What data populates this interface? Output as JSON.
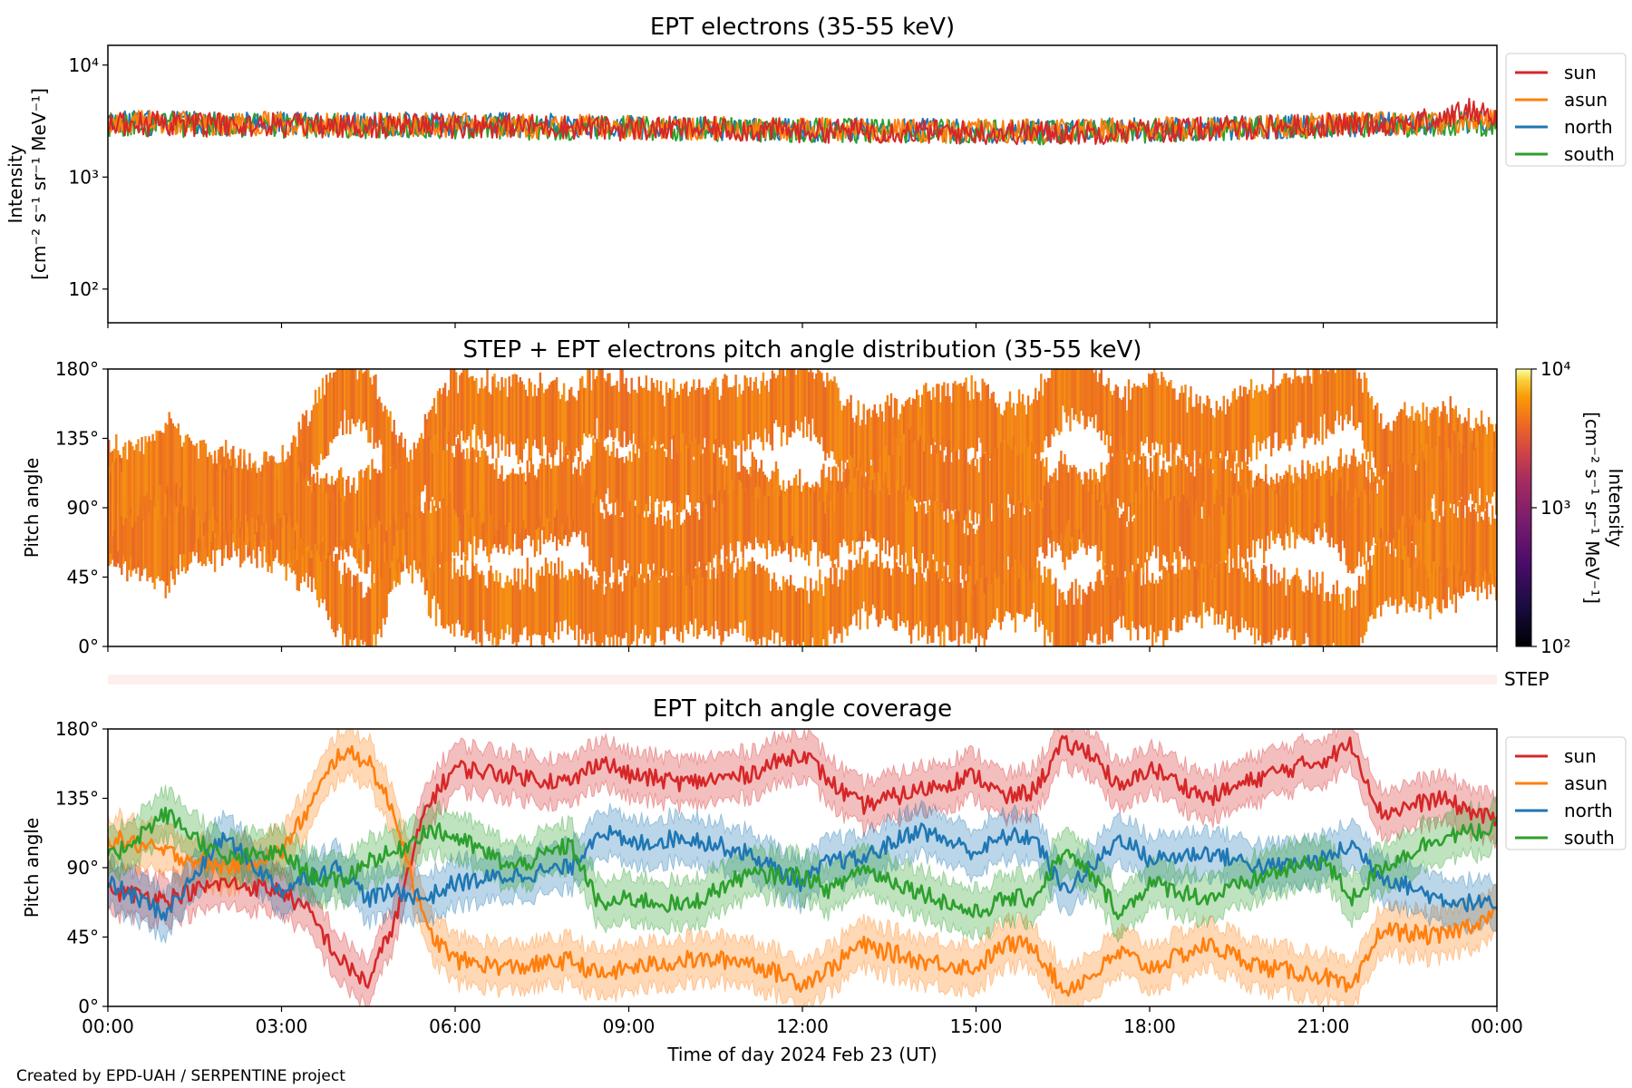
{
  "chart_data": [
    {
      "type": "line",
      "title": "EPT electrons (35-55 keV)",
      "ylabel": "Intensity",
      "yunit_label": "[cm⁻² s⁻¹ sr⁻¹ MeV⁻¹]",
      "yscale": "log",
      "ylim": [
        50,
        15000
      ],
      "yticks": [
        {
          "value": 100,
          "label": "10²"
        },
        {
          "value": 1000,
          "label": "10³"
        },
        {
          "value": 10000,
          "label": "10⁴"
        }
      ],
      "xlim_hours": [
        0,
        24
      ],
      "legend_position": "outside-right-top",
      "series": [
        {
          "name": "sun",
          "color": "#d62728",
          "x": [
            0,
            1,
            2,
            3,
            4,
            5,
            6,
            7,
            8,
            9,
            10,
            11,
            12,
            13,
            14,
            15,
            16,
            17,
            18,
            19,
            20,
            21,
            22,
            23,
            23.5,
            24
          ],
          "values": [
            3000,
            3000,
            2900,
            2900,
            2800,
            2900,
            2850,
            2900,
            2800,
            2700,
            2700,
            2650,
            2600,
            2600,
            2550,
            2500,
            2500,
            2500,
            2600,
            2700,
            2800,
            2900,
            3000,
            3200,
            4000,
            3500
          ]
        },
        {
          "name": "asun",
          "color": "#ff7f0e",
          "x": [
            0,
            2,
            4,
            6,
            8,
            10,
            12,
            14,
            16,
            18,
            20,
            22,
            24
          ],
          "values": [
            3100,
            3000,
            2950,
            2900,
            2850,
            2750,
            2650,
            2600,
            2550,
            2650,
            2800,
            3000,
            3100
          ]
        },
        {
          "name": "north",
          "color": "#1f77b4",
          "x": [
            0,
            2,
            4,
            6,
            8,
            10,
            12,
            14,
            16,
            18,
            20,
            22,
            24
          ],
          "values": [
            3050,
            3000,
            2950,
            2950,
            2850,
            2750,
            2650,
            2600,
            2550,
            2650,
            2800,
            3000,
            3100
          ]
        },
        {
          "name": "south",
          "color": "#2ca02c",
          "x": [
            0,
            2,
            4,
            6,
            8,
            10,
            12,
            14,
            16,
            18,
            20,
            22,
            24
          ],
          "values": [
            2950,
            2900,
            2850,
            2800,
            2750,
            2700,
            2600,
            2550,
            2500,
            2600,
            2750,
            2900,
            3000
          ]
        }
      ]
    },
    {
      "type": "heatmap",
      "title": "STEP + EPT electrons pitch angle distribution (35-55 keV)",
      "ylabel": "Pitch angle",
      "ylim": [
        0,
        180
      ],
      "yticks": [
        "0°",
        "45°",
        "90°",
        "135°",
        "180°"
      ],
      "xlim_hours": [
        0,
        24
      ],
      "colorbar": {
        "label": "Intensity",
        "unit_label": "[cm⁻² s⁻¹ sr⁻¹ MeV⁻¹]",
        "scale": "log",
        "range": [
          100,
          10000
        ],
        "tick_labels": [
          "10²",
          "10³",
          "10⁴"
        ],
        "colormap": "inferno"
      },
      "step_strip_label": "STEP"
    },
    {
      "type": "line",
      "title": "EPT pitch angle coverage",
      "ylabel": "Pitch angle",
      "xlabel": "Time of day 2024 Feb 23 (UT)",
      "ylim": [
        0,
        180
      ],
      "yticks": [
        "0°",
        "45°",
        "90°",
        "135°",
        "180°"
      ],
      "xlim_hours": [
        0,
        24
      ],
      "xticks": [
        "00:00",
        "03:00",
        "06:00",
        "09:00",
        "12:00",
        "15:00",
        "18:00",
        "21:00",
        "00:00"
      ],
      "legend_position": "outside-right-top",
      "shaded_band_halfwidth_deg": 15,
      "series": [
        {
          "name": "sun",
          "color": "#d62728",
          "x": [
            0,
            1,
            2,
            3,
            3.5,
            4,
            4.5,
            5,
            5.5,
            6,
            7,
            8,
            8.5,
            9,
            10,
            11,
            12,
            12.5,
            13,
            14,
            15,
            15.5,
            16,
            16.5,
            17,
            17.5,
            18,
            19,
            20,
            21,
            21.5,
            22,
            23,
            24
          ],
          "values": [
            75,
            70,
            80,
            75,
            60,
            30,
            15,
            60,
            130,
            155,
            150,
            145,
            160,
            150,
            145,
            150,
            165,
            145,
            130,
            140,
            150,
            135,
            140,
            170,
            165,
            140,
            155,
            135,
            150,
            160,
            170,
            125,
            135,
            120
          ]
        },
        {
          "name": "asun",
          "color": "#ff7f0e",
          "x": [
            0,
            1,
            2,
            3,
            3.5,
            4,
            4.5,
            5,
            5.5,
            6,
            7,
            8,
            8.5,
            9,
            10,
            11,
            12,
            12.5,
            13,
            14,
            15,
            15.5,
            16,
            16.5,
            17,
            17.5,
            18,
            19,
            20,
            21,
            21.5,
            22,
            23,
            24
          ],
          "values": [
            110,
            100,
            90,
            100,
            130,
            165,
            160,
            120,
            50,
            30,
            25,
            30,
            20,
            25,
            30,
            30,
            15,
            25,
            40,
            30,
            25,
            40,
            40,
            10,
            20,
            35,
            25,
            40,
            25,
            20,
            10,
            50,
            45,
            60
          ]
        },
        {
          "name": "north",
          "color": "#1f77b4",
          "x": [
            0,
            1,
            2,
            3,
            3.5,
            4,
            4.5,
            5,
            5.5,
            6,
            7,
            8,
            8.5,
            9,
            10,
            11,
            12,
            12.5,
            13,
            14,
            15,
            15.5,
            16,
            16.5,
            17,
            17.5,
            18,
            19,
            20,
            21,
            21.5,
            22,
            23,
            24
          ],
          "values": [
            80,
            60,
            110,
            75,
            85,
            90,
            70,
            75,
            70,
            80,
            85,
            90,
            115,
            105,
            110,
            100,
            80,
            95,
            95,
            115,
            100,
            110,
            110,
            75,
            90,
            110,
            95,
            100,
            90,
            95,
            105,
            85,
            70,
            65
          ]
        },
        {
          "name": "south",
          "color": "#2ca02c",
          "x": [
            0,
            1,
            2,
            3,
            3.5,
            4,
            4.5,
            5,
            5.5,
            6,
            7,
            8,
            8.5,
            9,
            10,
            11,
            12,
            12.5,
            13,
            14,
            15,
            15.5,
            16,
            16.5,
            17,
            17.5,
            18,
            19,
            20,
            21,
            21.5,
            22,
            23,
            24
          ],
          "values": [
            95,
            125,
            95,
            100,
            85,
            80,
            95,
            100,
            115,
            110,
            90,
            105,
            65,
            70,
            65,
            85,
            85,
            75,
            90,
            75,
            60,
            70,
            70,
            100,
            85,
            60,
            80,
            70,
            85,
            95,
            70,
            90,
            110,
            115
          ]
        }
      ]
    }
  ],
  "footer": "Created by EPD-UAH / SERPENTINE project"
}
